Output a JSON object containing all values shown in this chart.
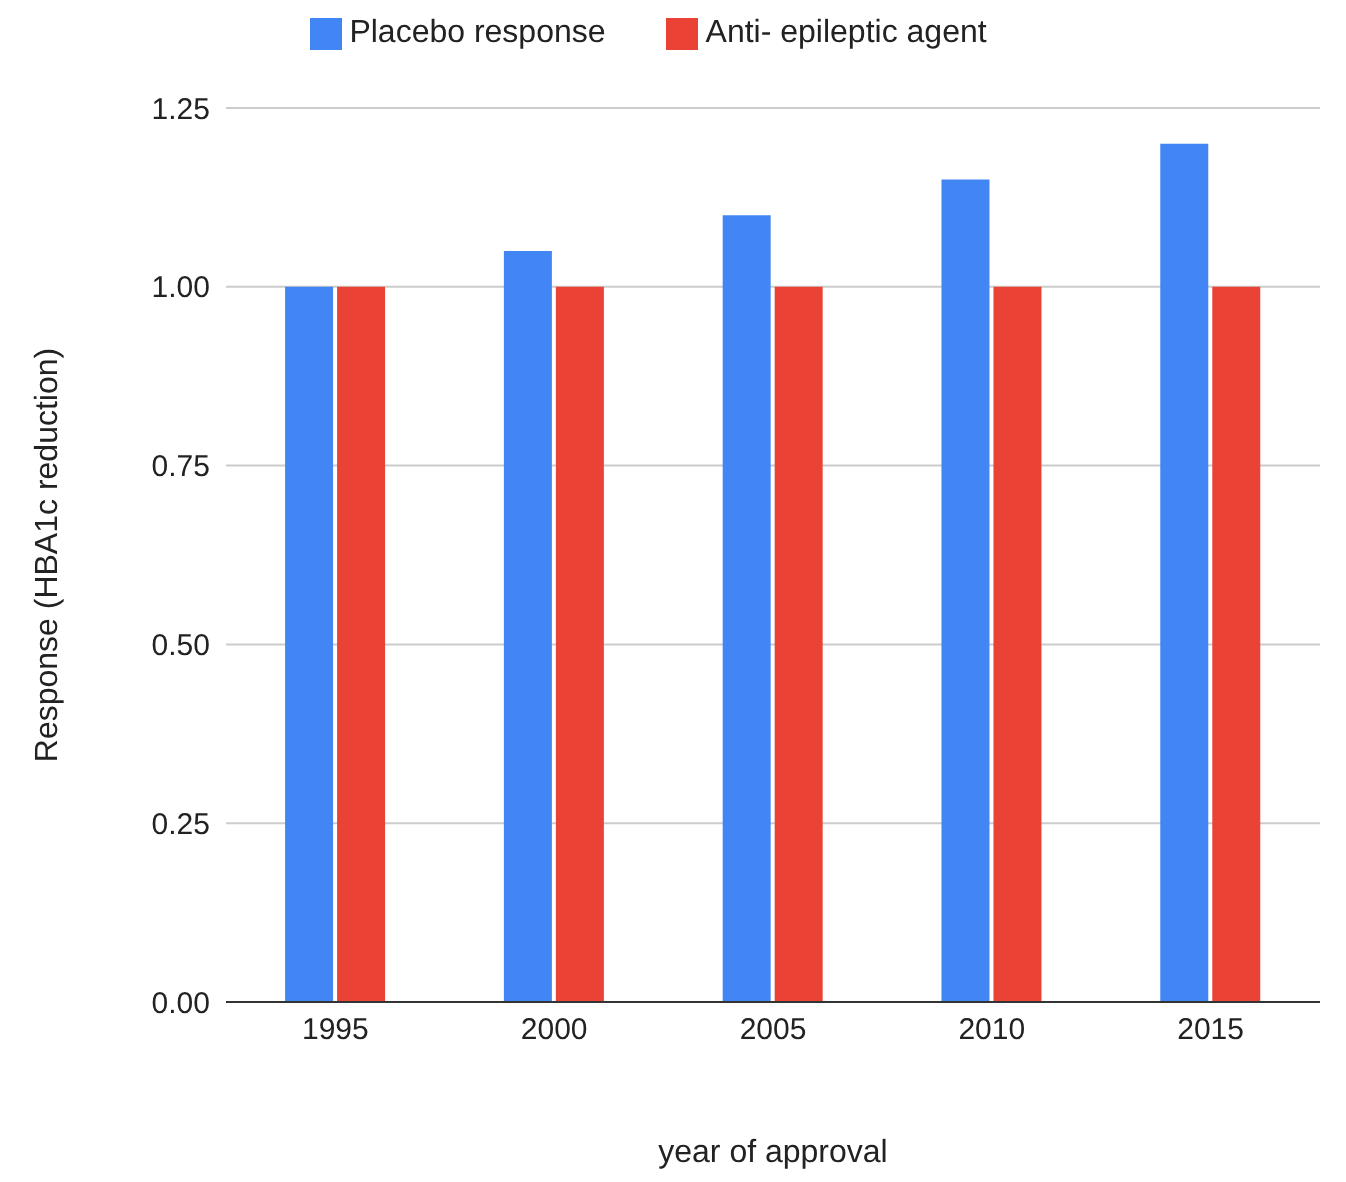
{
  "chart_data": {
    "type": "bar",
    "xlabel": "year of approval",
    "ylabel": "Response (HBA1c reduction)",
    "categories": [
      "1995",
      "2000",
      "2005",
      "2010",
      "2015"
    ],
    "series": [
      {
        "name": "Placebo response",
        "color": "#4285f4",
        "values": [
          1.0,
          1.05,
          1.1,
          1.15,
          1.2
        ]
      },
      {
        "name": "Anti- epileptic agent",
        "color": "#ea4335",
        "values": [
          1.0,
          1.0,
          1.0,
          1.0,
          1.0
        ]
      }
    ],
    "ylim": [
      0,
      1.25
    ],
    "yticks": [
      {
        "value": 0,
        "label": "0.00"
      },
      {
        "value": 0.25,
        "label": "0.25"
      },
      {
        "value": 0.5,
        "label": "0.50"
      },
      {
        "value": 0.75,
        "label": "0.75"
      },
      {
        "value": 1,
        "label": "1.00"
      },
      {
        "value": 1.25,
        "label": "1.25"
      }
    ],
    "grid": "y",
    "legend": "top"
  }
}
